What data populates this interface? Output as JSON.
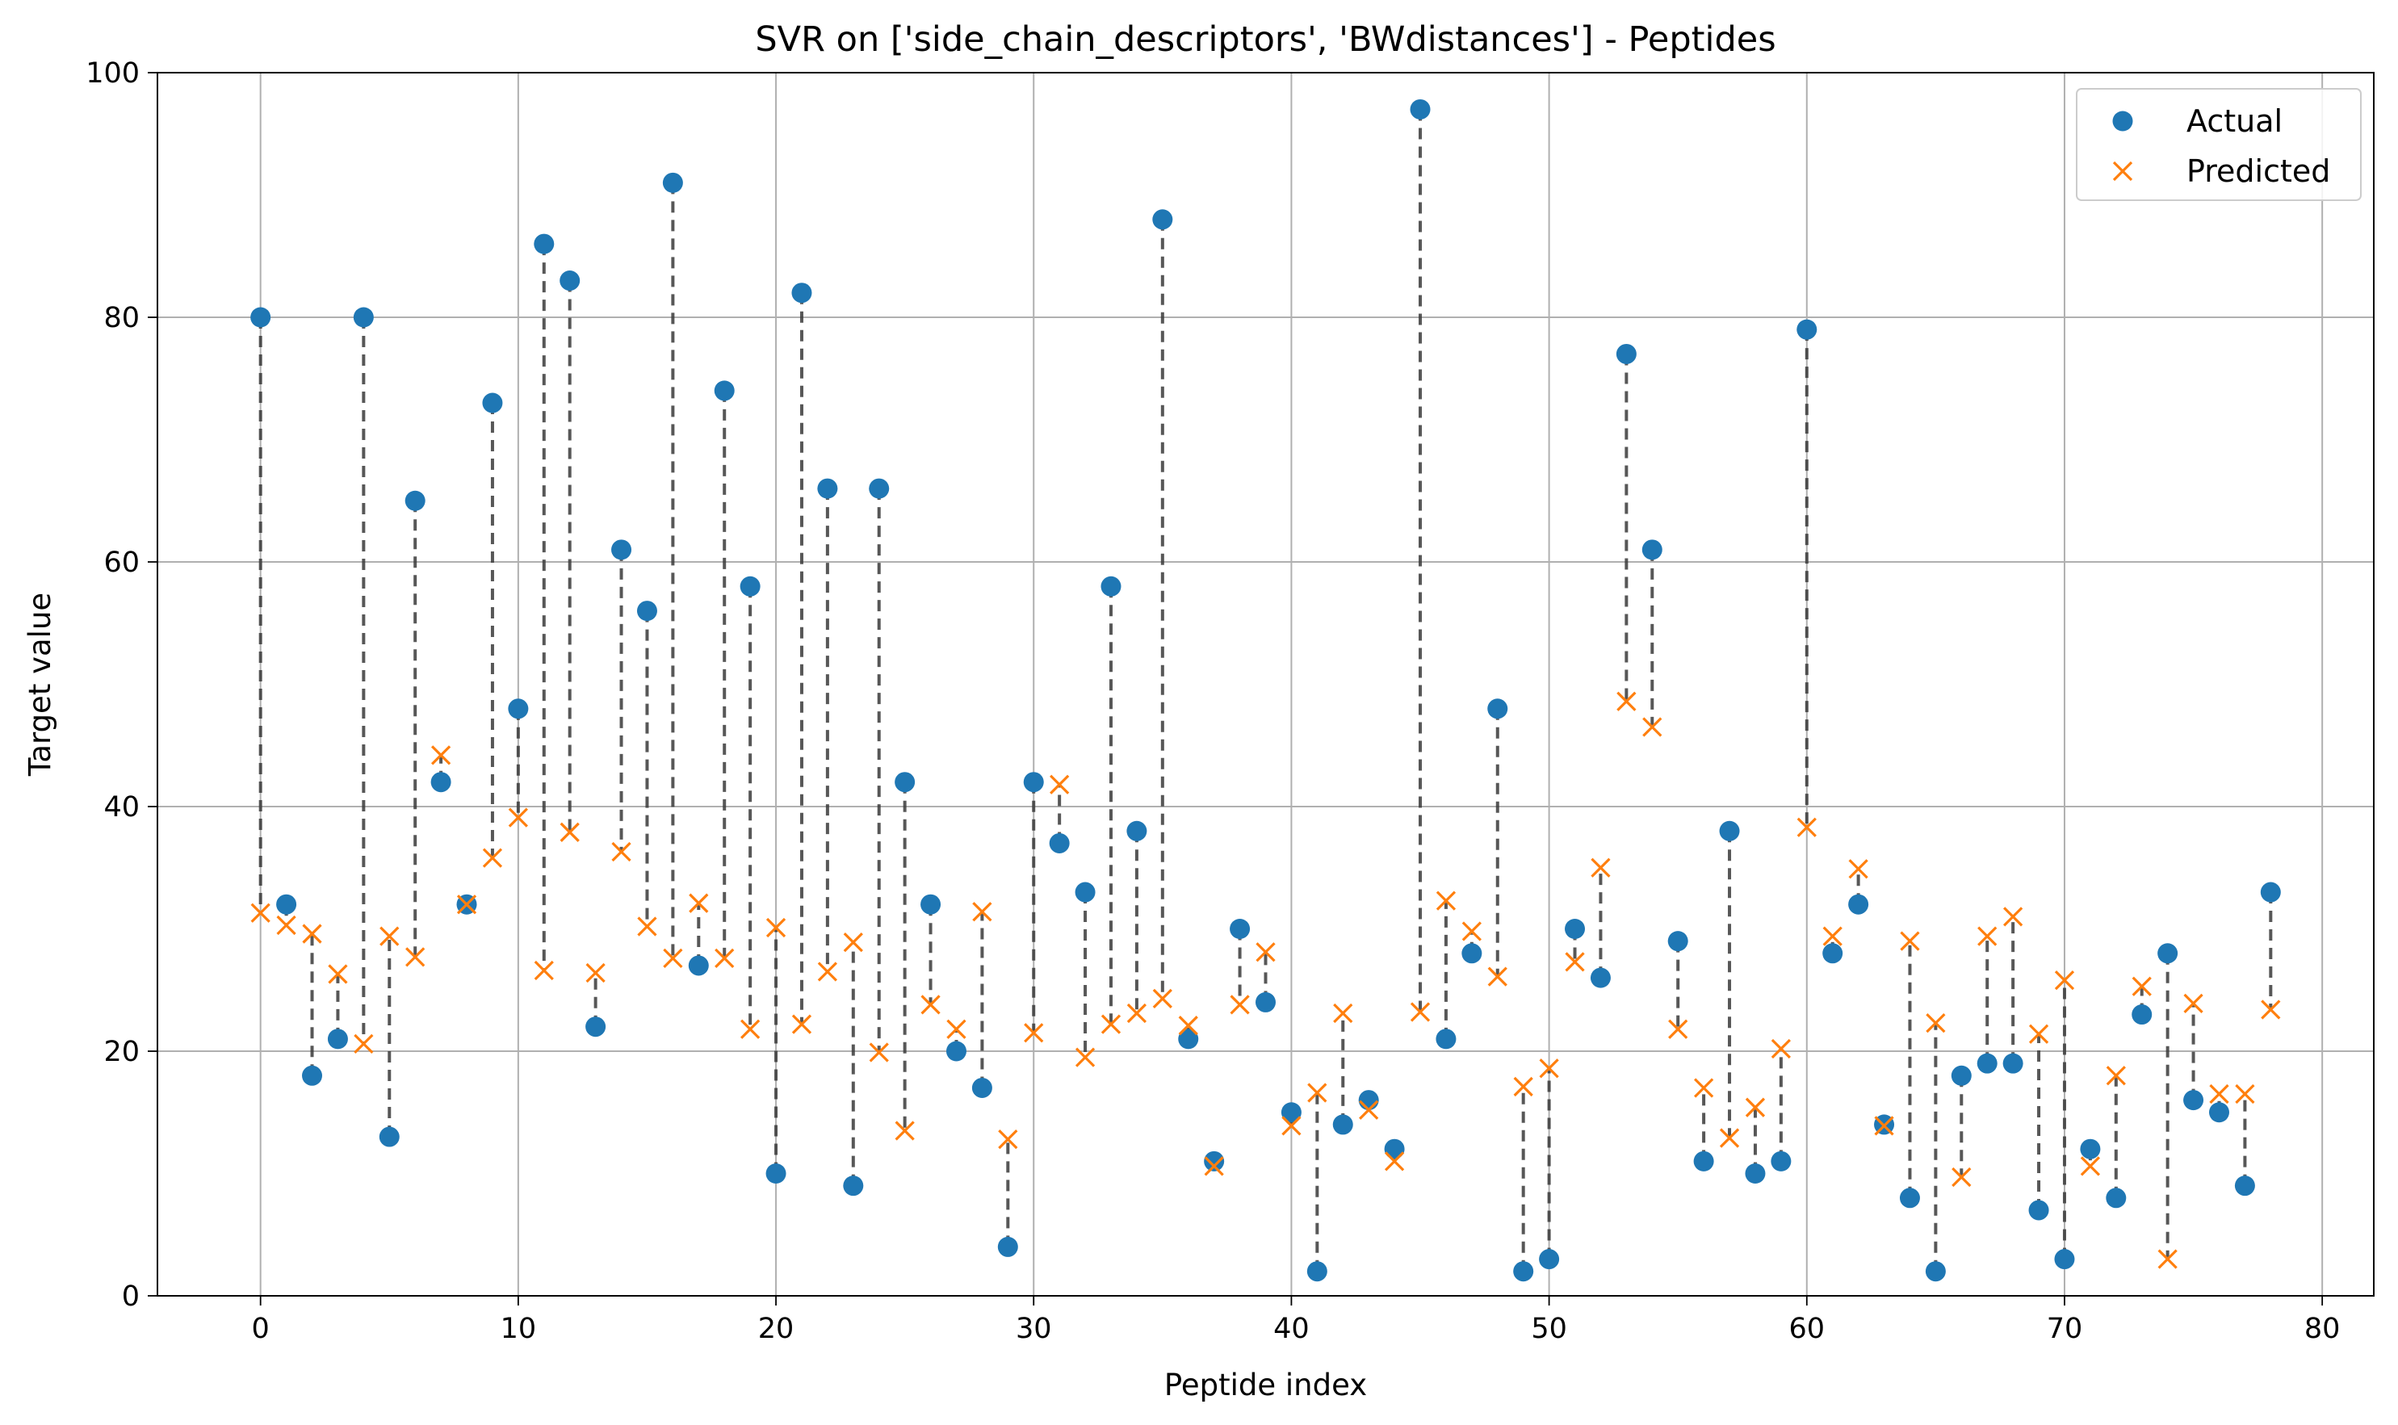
{
  "chart_data": {
    "type": "scatter",
    "title": "SVR on ['side_chain_descriptors', 'BWdistances'] - Peptides",
    "xlabel": "Peptide index",
    "ylabel": "Target value",
    "xlim": [
      -4,
      82
    ],
    "ylim": [
      0,
      100
    ],
    "xticks": [
      0,
      10,
      20,
      30,
      40,
      50,
      60,
      70,
      80
    ],
    "yticks": [
      0,
      20,
      40,
      60,
      80,
      100
    ],
    "grid": true,
    "legend": "top-right",
    "residual_lines": "dashed",
    "x": [
      0,
      1,
      2,
      3,
      4,
      5,
      6,
      7,
      8,
      9,
      10,
      11,
      12,
      13,
      14,
      15,
      16,
      17,
      18,
      19,
      20,
      21,
      22,
      23,
      24,
      25,
      26,
      27,
      28,
      29,
      30,
      31,
      32,
      33,
      34,
      35,
      36,
      37,
      38,
      39,
      40,
      41,
      42,
      43,
      44,
      45,
      46,
      47,
      48,
      49,
      50,
      51,
      52,
      53,
      54,
      55,
      56,
      57,
      58,
      59,
      60,
      61,
      62,
      63,
      64,
      65,
      66,
      67,
      68,
      69,
      70,
      71,
      72,
      73,
      74,
      75,
      76,
      77,
      78
    ],
    "series": [
      {
        "name": "Actual",
        "marker": "circle",
        "color": "#1f77b4",
        "values": [
          80,
          32,
          18,
          21,
          80,
          13,
          65,
          42,
          32,
          73,
          48,
          86,
          83,
          22,
          61,
          56,
          91,
          27,
          74,
          58,
          10,
          82,
          66,
          9,
          66,
          42,
          32,
          20,
          17,
          4,
          42,
          37,
          33,
          58,
          38,
          88,
          21,
          11,
          30,
          24,
          15,
          2,
          14,
          16,
          12,
          97,
          21,
          28,
          48,
          2,
          3,
          30,
          26,
          77,
          61,
          29,
          11,
          38,
          10,
          11,
          79,
          28,
          32,
          14,
          8,
          2,
          18,
          19,
          19,
          7,
          3,
          12,
          8,
          23,
          28,
          16,
          15,
          9,
          33
        ]
      },
      {
        "name": "Predicted",
        "marker": "x",
        "color": "#ff7f0e",
        "values": [
          31.3,
          30.3,
          29.6,
          26.3,
          20.6,
          29.4,
          27.7,
          44.2,
          32,
          35.8,
          39.1,
          26.6,
          37.9,
          26.4,
          36.3,
          30.2,
          27.6,
          32.1,
          27.6,
          21.8,
          30.1,
          22.2,
          26.5,
          28.9,
          19.9,
          13.5,
          23.8,
          21.8,
          31.4,
          12.8,
          21.5,
          41.8,
          19.5,
          22.2,
          23.1,
          24.3,
          22.1,
          10.6,
          23.8,
          28.1,
          13.9,
          16.6,
          23.1,
          15.2,
          11,
          23.2,
          32.3,
          29.8,
          26.1,
          17.1,
          18.6,
          27.3,
          35,
          48.6,
          46.5,
          21.8,
          17,
          12.9,
          15.4,
          20.2,
          38.3,
          29.4,
          34.9,
          13.9,
          29,
          22.3,
          9.7,
          29.4,
          31,
          21.4,
          25.8,
          10.6,
          18,
          25.3,
          3,
          23.9,
          16.5,
          16.5,
          23.4
        ]
      }
    ]
  }
}
